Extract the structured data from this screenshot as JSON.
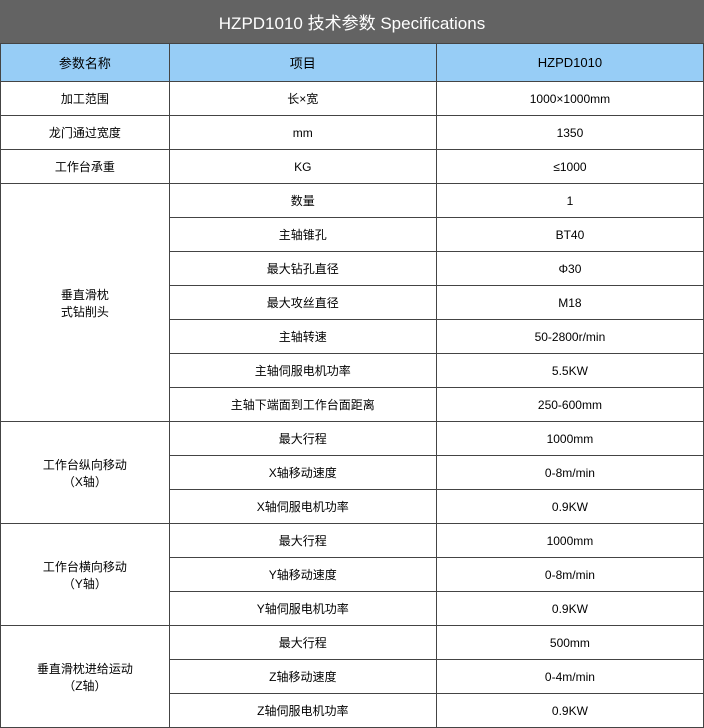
{
  "title": "HZPD1010 技术参数 Specifications",
  "colors": {
    "title_bg": "#636363",
    "title_fg": "#ffffff",
    "header_bg": "#97cdf6",
    "header_fg": "#000000",
    "border": "#444444",
    "cell_bg": "#ffffff",
    "cell_fg": "#000000"
  },
  "columns": [
    "参数名称",
    "项目",
    "HZPD1010"
  ],
  "column_widths": [
    "24%",
    "38%",
    "38%"
  ],
  "rows": [
    {
      "param": "加工范围",
      "item": "长×宽",
      "value": "1000×1000mm",
      "rowspan": 1
    },
    {
      "param": "龙门通过宽度",
      "item": "mm",
      "value": "1350",
      "rowspan": 1
    },
    {
      "param": "工作台承重",
      "item": "KG",
      "value": "≤1000",
      "rowspan": 1
    },
    {
      "param": "垂直滑枕\n式钻削头",
      "item": "数量",
      "value": "1",
      "rowspan": 7
    },
    {
      "param": null,
      "item": "主轴锥孔",
      "value": "BT40"
    },
    {
      "param": null,
      "item": "最大钻孔直径",
      "value": "Φ30"
    },
    {
      "param": null,
      "item": "最大攻丝直径",
      "value": "M18"
    },
    {
      "param": null,
      "item": "主轴转速",
      "value": "50-2800r/min"
    },
    {
      "param": null,
      "item": "主轴伺服电机功率",
      "value": "5.5KW"
    },
    {
      "param": null,
      "item": "主轴下端面到工作台面距离",
      "value": "250-600mm"
    },
    {
      "param": "工作台纵向移动\n（X轴）",
      "item": "最大行程",
      "value": "1000mm",
      "rowspan": 3
    },
    {
      "param": null,
      "item": "X轴移动速度",
      "value": "0-8m/min"
    },
    {
      "param": null,
      "item": "X轴伺服电机功率",
      "value": "0.9KW"
    },
    {
      "param": "工作台横向移动\n（Y轴）",
      "item": "最大行程",
      "value": "1000mm",
      "rowspan": 3
    },
    {
      "param": null,
      "item": "Y轴移动速度",
      "value": "0-8m/min"
    },
    {
      "param": null,
      "item": "Y轴伺服电机功率",
      "value": "0.9KW"
    },
    {
      "param": "垂直滑枕进给运动\n（Z轴）",
      "item": "最大行程",
      "value": "500mm",
      "rowspan": 3
    },
    {
      "param": null,
      "item": "Z轴移动速度",
      "value": "0-4m/min"
    },
    {
      "param": null,
      "item": "Z轴伺服电机功率",
      "value": "0.9KW"
    }
  ]
}
